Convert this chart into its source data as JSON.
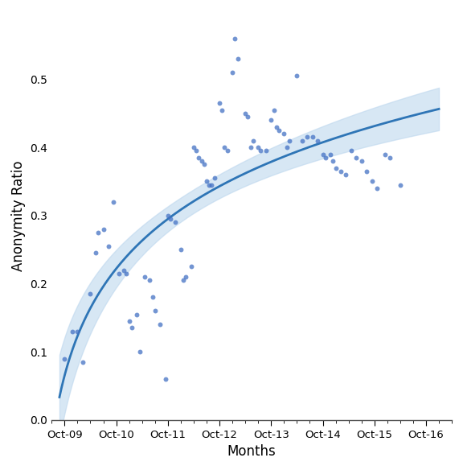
{
  "title": "",
  "xlabel": "Months",
  "ylabel": "Anonymity Ratio",
  "tick_labels": [
    "Oct-09",
    "Oct-10",
    "Oct-11",
    "Oct-12",
    "Oct-13",
    "Oct-14",
    "Oct-15",
    "Oct-16"
  ],
  "ylim": [
    0.0,
    0.6
  ],
  "yticks": [
    0.0,
    0.1,
    0.2,
    0.3,
    0.4,
    0.5
  ],
  "scatter_color": "#4472C4",
  "line_color": "#2E75B6",
  "ci_color": "#BDD7EE",
  "scatter_alpha": 0.75,
  "scatter_size": 18,
  "points": [
    [
      0,
      0.09
    ],
    [
      0.3,
      0.13
    ],
    [
      0.5,
      0.13
    ],
    [
      0.7,
      0.085
    ],
    [
      1.0,
      0.185
    ],
    [
      1.2,
      0.245
    ],
    [
      1.3,
      0.275
    ],
    [
      1.5,
      0.28
    ],
    [
      1.7,
      0.255
    ],
    [
      1.9,
      0.32
    ],
    [
      2.1,
      0.215
    ],
    [
      2.3,
      0.22
    ],
    [
      2.4,
      0.215
    ],
    [
      2.5,
      0.145
    ],
    [
      2.6,
      0.135
    ],
    [
      2.8,
      0.155
    ],
    [
      2.9,
      0.1
    ],
    [
      3.1,
      0.21
    ],
    [
      3.3,
      0.205
    ],
    [
      3.4,
      0.18
    ],
    [
      3.5,
      0.16
    ],
    [
      3.7,
      0.14
    ],
    [
      3.9,
      0.06
    ],
    [
      4.0,
      0.3
    ],
    [
      4.1,
      0.295
    ],
    [
      4.3,
      0.29
    ],
    [
      4.5,
      0.25
    ],
    [
      4.6,
      0.205
    ],
    [
      4.7,
      0.21
    ],
    [
      4.9,
      0.225
    ],
    [
      5.0,
      0.4
    ],
    [
      5.1,
      0.395
    ],
    [
      5.2,
      0.385
    ],
    [
      5.3,
      0.38
    ],
    [
      5.4,
      0.375
    ],
    [
      5.5,
      0.35
    ],
    [
      5.6,
      0.345
    ],
    [
      5.7,
      0.345
    ],
    [
      5.8,
      0.355
    ],
    [
      6.0,
      0.465
    ],
    [
      6.1,
      0.455
    ],
    [
      6.2,
      0.4
    ],
    [
      6.3,
      0.395
    ],
    [
      6.5,
      0.51
    ],
    [
      6.6,
      0.56
    ],
    [
      6.7,
      0.53
    ],
    [
      7.0,
      0.45
    ],
    [
      7.1,
      0.445
    ],
    [
      7.2,
      0.4
    ],
    [
      7.3,
      0.41
    ],
    [
      7.5,
      0.4
    ],
    [
      7.6,
      0.395
    ],
    [
      7.8,
      0.395
    ],
    [
      8.0,
      0.44
    ],
    [
      8.1,
      0.455
    ],
    [
      8.2,
      0.43
    ],
    [
      8.3,
      0.425
    ],
    [
      8.5,
      0.42
    ],
    [
      8.6,
      0.4
    ],
    [
      8.7,
      0.41
    ],
    [
      9.0,
      0.505
    ],
    [
      9.2,
      0.41
    ],
    [
      9.4,
      0.415
    ],
    [
      9.6,
      0.415
    ],
    [
      9.8,
      0.41
    ],
    [
      10.0,
      0.39
    ],
    [
      10.1,
      0.385
    ],
    [
      10.3,
      0.39
    ],
    [
      10.4,
      0.38
    ],
    [
      10.5,
      0.37
    ],
    [
      10.7,
      0.365
    ],
    [
      10.9,
      0.36
    ],
    [
      11.1,
      0.395
    ],
    [
      11.3,
      0.385
    ],
    [
      11.5,
      0.38
    ],
    [
      11.7,
      0.365
    ],
    [
      11.9,
      0.35
    ],
    [
      12.1,
      0.34
    ],
    [
      12.4,
      0.39
    ],
    [
      12.6,
      0.385
    ],
    [
      13.0,
      0.345
    ]
  ],
  "figsize": [
    5.76,
    5.84
  ],
  "dpi": 100,
  "n_ticks": 8,
  "tick_positions": [
    0,
    2,
    4,
    6,
    8,
    10,
    12,
    14
  ]
}
